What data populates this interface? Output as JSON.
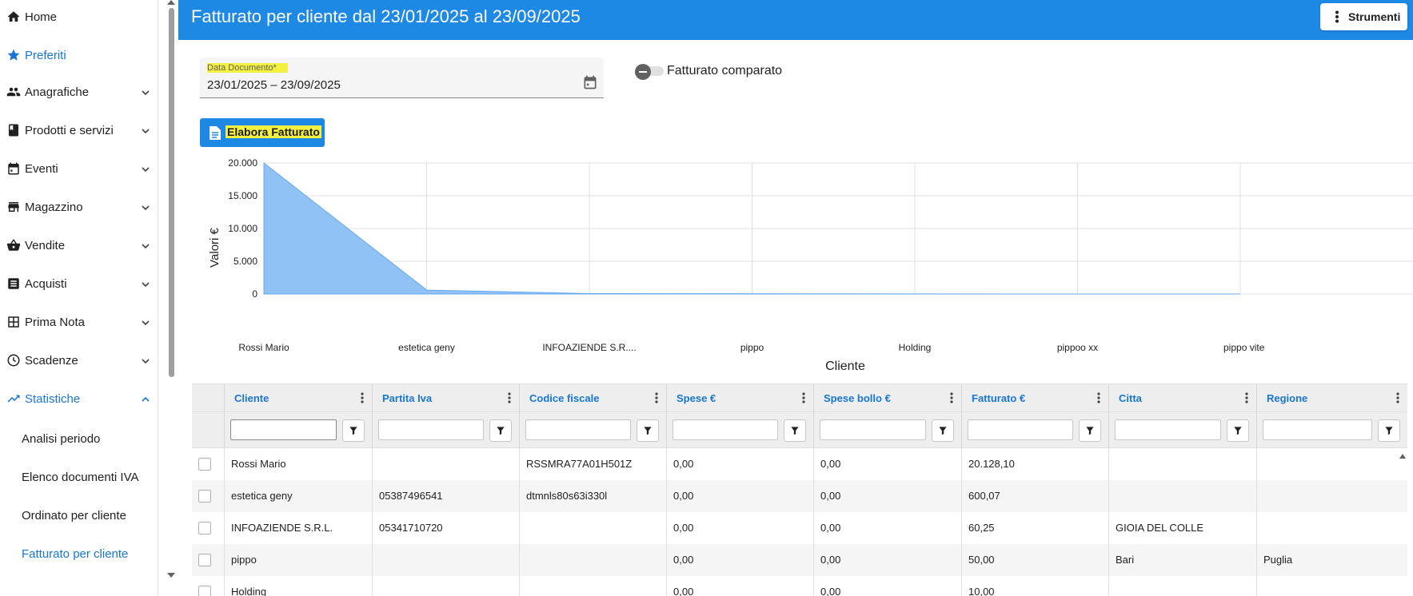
{
  "sidebar": {
    "items": [
      {
        "label": "Home",
        "icon": "home-icon"
      },
      {
        "label": "Preferiti",
        "icon": "star-icon"
      },
      {
        "label": "Anagrafiche",
        "icon": "people-icon"
      },
      {
        "label": "Prodotti e servizi",
        "icon": "book-icon"
      },
      {
        "label": "Eventi",
        "icon": "calendar-icon"
      },
      {
        "label": "Magazzino",
        "icon": "warehouse-icon"
      },
      {
        "label": "Vendite",
        "icon": "basket-icon"
      },
      {
        "label": "Acquisti",
        "icon": "list-icon"
      },
      {
        "label": "Prima Nota",
        "icon": "table-icon"
      },
      {
        "label": "Scadenze",
        "icon": "clock-icon"
      },
      {
        "label": "Statistiche",
        "icon": "trending-up-icon"
      }
    ],
    "sub_items": [
      {
        "label": "Analisi periodo"
      },
      {
        "label": "Elenco documenti IVA"
      },
      {
        "label": "Ordinato per cliente"
      },
      {
        "label": "Fatturato per cliente"
      }
    ]
  },
  "header": {
    "title": "Fatturato per cliente dal 23/01/2025 al 23/09/2025",
    "tools_label": "Strumenti"
  },
  "filters": {
    "date_label": "Data Documento*",
    "date_value": "23/01/2025 – 23/09/2025",
    "compare_label": "Fatturato comparato",
    "compare_on": false
  },
  "actions": {
    "elabora_label": "Elabora Fatturato"
  },
  "colors": {
    "primary": "#1e88e5",
    "link": "#1976d2",
    "highlight": "#f4f040",
    "area_fill": "#90c2f5"
  },
  "chart_data": {
    "type": "area",
    "categories": [
      "Rossi Mario",
      "estetica geny",
      "INFOAZIENDE S.R....",
      "pippo",
      "Holding",
      "pippoo xx",
      "pippo vite"
    ],
    "values": [
      20128.1,
      600.07,
      60.25,
      50.0,
      10.0,
      0,
      0
    ],
    "xlabel": "Cliente",
    "ylabel": "Valori €",
    "ylim": [
      0,
      20000
    ],
    "yticks": [
      "0",
      "5.000",
      "10.000",
      "15.000",
      "20.000"
    ],
    "grid": true,
    "legend": "none"
  },
  "table": {
    "columns": [
      "Cliente",
      "Partita Iva",
      "Codice fiscale",
      "Spese €",
      "Spese bollo €",
      "Fatturato €",
      "Citta",
      "Regione"
    ],
    "rows": [
      [
        "Rossi Mario",
        "",
        "RSSMRA77A01H501Z",
        "0,00",
        "0,00",
        "20.128,10",
        "",
        ""
      ],
      [
        "estetica geny",
        "05387496541",
        "dtmnls80s63i330l",
        "0,00",
        "0,00",
        "600,07",
        "",
        ""
      ],
      [
        "INFOAZIENDE S.R.L.",
        "05341710720",
        "",
        "0,00",
        "0,00",
        "60,25",
        "GIOIA DEL COLLE",
        ""
      ],
      [
        "pippo",
        "",
        "",
        "0,00",
        "0,00",
        "50,00",
        "Bari",
        "Puglia"
      ],
      [
        "Holding",
        "",
        "",
        "0,00",
        "0,00",
        "10,00",
        "",
        ""
      ]
    ]
  }
}
